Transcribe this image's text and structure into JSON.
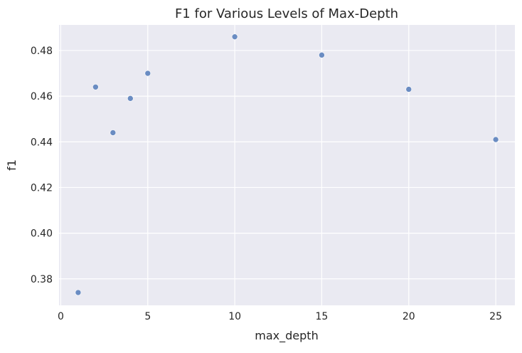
{
  "chart_data": {
    "type": "scatter",
    "title": "F1 for Various Levels of Max-Depth",
    "xlabel": "max_depth",
    "ylabel": "f1",
    "xlim": [
      -0.1,
      26.1
    ],
    "ylim": [
      0.3684,
      0.4912
    ],
    "xticks": [
      0,
      5,
      10,
      15,
      20,
      25
    ],
    "yticks": [
      0.38,
      0.4,
      0.42,
      0.44,
      0.46,
      0.48
    ],
    "xtick_labels": [
      "0",
      "5",
      "10",
      "15",
      "20",
      "25"
    ],
    "ytick_labels": [
      "0.38",
      "0.40",
      "0.42",
      "0.44",
      "0.46",
      "0.48"
    ],
    "grid": true,
    "series": [
      {
        "color": "#6a8cc2",
        "points": [
          {
            "x": 1,
            "y": 0.374
          },
          {
            "x": 2,
            "y": 0.464
          },
          {
            "x": 3,
            "y": 0.444
          },
          {
            "x": 4,
            "y": 0.459
          },
          {
            "x": 5,
            "y": 0.47
          },
          {
            "x": 10,
            "y": 0.486
          },
          {
            "x": 15,
            "y": 0.478
          },
          {
            "x": 20,
            "y": 0.463
          },
          {
            "x": 25,
            "y": 0.441
          }
        ]
      }
    ]
  }
}
